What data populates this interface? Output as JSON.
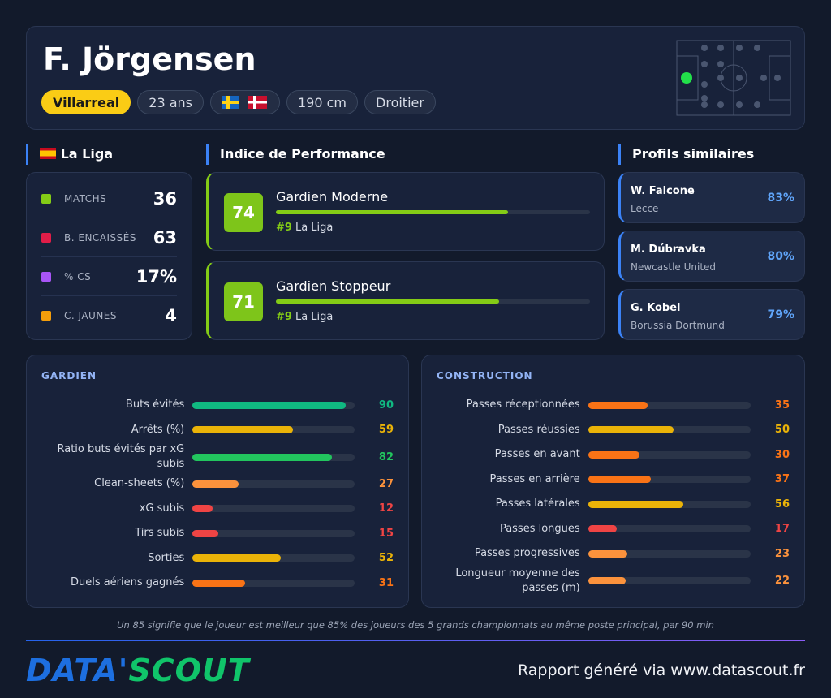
{
  "player": {
    "name": "F. Jörgensen",
    "club": "Villarreal",
    "age": "23 ans",
    "height": "190 cm",
    "foot": "Droitier"
  },
  "league_stats": {
    "league": "La Liga",
    "rows": [
      {
        "label": "MATCHS",
        "value": "36"
      },
      {
        "label": "B. ENCAISSÉS",
        "value": "63"
      },
      {
        "label": "% CS",
        "value": "17%"
      },
      {
        "label": "C. JAUNES",
        "value": "4"
      }
    ]
  },
  "performance": {
    "title": "Indice de Performance",
    "xlim": [
      0,
      100
    ],
    "items": [
      {
        "name": "Gardien Moderne",
        "score": 74,
        "rank": "#9",
        "league": "La Liga"
      },
      {
        "name": "Gardien Stoppeur",
        "score": 71,
        "rank": "#9",
        "league": "La Liga"
      }
    ]
  },
  "similar": {
    "title": "Profils similaires",
    "items": [
      {
        "name": "W. Falcone",
        "club": "Lecce",
        "match": "83%"
      },
      {
        "name": "M. Dúbravka",
        "club": "Newcastle United",
        "match": "80%"
      },
      {
        "name": "G. Kobel",
        "club": "Borussia Dortmund",
        "match": "79%"
      }
    ]
  },
  "sections": [
    {
      "title": "GARDIEN",
      "xlim": [
        0,
        100
      ],
      "rows": [
        {
          "label": "Buts évités",
          "value": 90,
          "color": "#10b981"
        },
        {
          "label": "Arrêts (%)",
          "value": 59,
          "color": "#eab308"
        },
        {
          "label": "Ratio buts évités par xG subis",
          "value": 82,
          "color": "#22c55e"
        },
        {
          "label": "Clean-sheets (%)",
          "value": 27,
          "color": "#fb923c"
        },
        {
          "label": "xG subis",
          "value": 12,
          "color": "#ef4444"
        },
        {
          "label": "Tirs subis",
          "value": 15,
          "color": "#ef4444"
        },
        {
          "label": "Sorties",
          "value": 52,
          "color": "#eab308"
        },
        {
          "label": "Duels aériens gagnés",
          "value": 31,
          "color": "#f97316"
        }
      ]
    },
    {
      "title": "CONSTRUCTION",
      "xlim": [
        0,
        100
      ],
      "rows": [
        {
          "label": "Passes réceptionnées",
          "value": 35,
          "color": "#f97316"
        },
        {
          "label": "Passes réussies",
          "value": 50,
          "color": "#eab308"
        },
        {
          "label": "Passes en avant",
          "value": 30,
          "color": "#f97316"
        },
        {
          "label": "Passes en arrière",
          "value": 37,
          "color": "#f97316"
        },
        {
          "label": "Passes latérales",
          "value": 56,
          "color": "#eab308"
        },
        {
          "label": "Passes longues",
          "value": 17,
          "color": "#ef4444"
        },
        {
          "label": "Passes progressives",
          "value": 23,
          "color": "#fb923c"
        },
        {
          "label": "Longueur moyenne des passes (m)",
          "value": 22,
          "color": "#fb923c"
        }
      ]
    }
  ],
  "footnote": "Un 85 signifie que le joueur est meilleur que 85% des joueurs des 5 grands championnats au même poste principal, par 90 min",
  "logo": {
    "part1": "DATA'",
    "part2": "SCOUT"
  },
  "footer": "Rapport généré via www.datascout.fr"
}
